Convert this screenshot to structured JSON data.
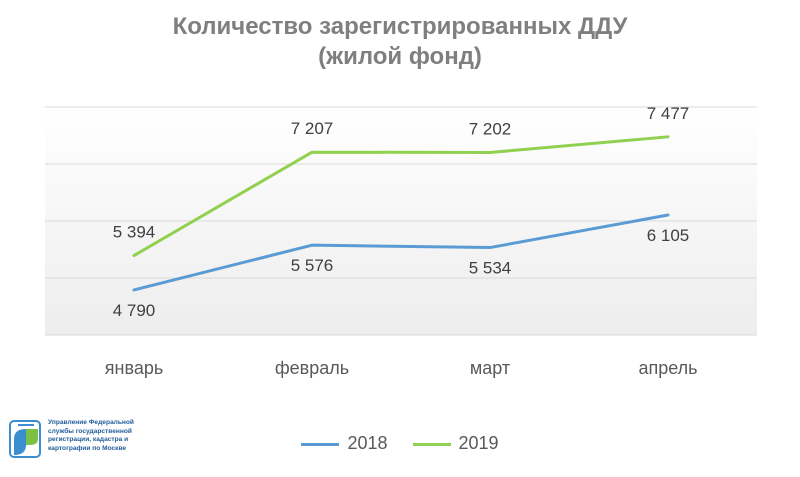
{
  "chart_data": {
    "type": "line",
    "title_line1": "Количество зарегистрированных ДДУ",
    "title_line2": "(жилой фонд)",
    "categories": [
      "январь",
      "февраль",
      "март",
      "апрель"
    ],
    "series": [
      {
        "name": "2018",
        "values": [
          4790,
          5576,
          5534,
          6105
        ],
        "labels": [
          "4 790",
          "5 576",
          "5 534",
          "6 105"
        ],
        "color": "#5b9bd5"
      },
      {
        "name": "2019",
        "values": [
          5394,
          7207,
          7202,
          7477
        ],
        "labels": [
          "5 394",
          "7 207",
          "7 202",
          "7 477"
        ],
        "color": "#92d050"
      }
    ],
    "ylim": [
      4000,
      8000
    ],
    "grid": true,
    "legend": "bottom"
  },
  "logo": {
    "text_lines": [
      "Управление Федеральной",
      "службы государственной",
      "регистрации, кадастра и",
      "картографии по Москве"
    ],
    "icon": "rosreestr-logo-icon",
    "colors": {
      "blue": "#3b8fd1",
      "green": "#7cc242"
    }
  }
}
